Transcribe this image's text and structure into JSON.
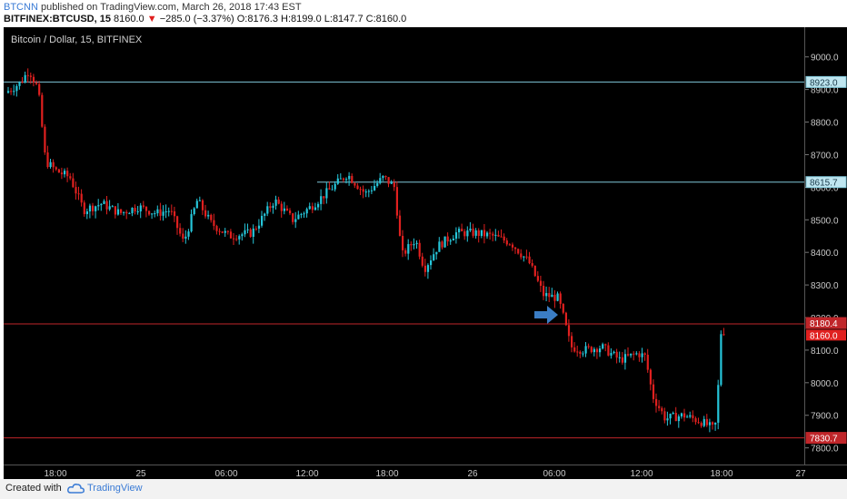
{
  "header": {
    "author": "BTCNN",
    "published_text": "published on TradingView.com, March 26, 2018 17:43 EST",
    "symbol": "BITFINEX:BTCUSD, 15",
    "last_price": "8160.0",
    "change_arrow": "▼",
    "change": "−285.0 (−3.37%)",
    "open": "O:8176.3",
    "high": "H:8199.0",
    "low": "L:8147.7",
    "close": "C:8160.0"
  },
  "footer": {
    "created_label": "Created with",
    "brand": "TradingView"
  },
  "colors": {
    "up": "#26c6da",
    "down": "#e0201f",
    "cyan_line": "#7fc6d8",
    "red_line": "#c0262a",
    "arrow": "#3b7dc4",
    "background": "#000000"
  },
  "chart_data": {
    "type": "candlestick",
    "title": "Bitcoin / Dollar, 15, BITFINEX",
    "ylim": [
      7760,
      9080
    ],
    "y_ticks": [
      "9000.0",
      "8900.0",
      "8800.0",
      "8700.0",
      "8600.0",
      "8500.0",
      "8400.0",
      "8300.0",
      "8200.0",
      "8100.0",
      "8000.0",
      "7900.0",
      "7800.0"
    ],
    "x_ticks": [
      "18:00",
      "25",
      "06:00",
      "12:00",
      "18:00",
      "26",
      "06:00",
      "12:00",
      "18:00",
      "27"
    ],
    "horizontal_lines": [
      {
        "name": "resistance-top",
        "value": 8923.0,
        "label": "8923.0",
        "color": "cyan"
      },
      {
        "name": "resistance-mid",
        "value": 8615.7,
        "label": "8615.7",
        "color": "cyan",
        "partial": true
      },
      {
        "name": "support-break",
        "value": 8180.4,
        "label": "8180.4",
        "color": "red"
      },
      {
        "name": "support-low",
        "value": 7830.7,
        "label": "7830.7",
        "color": "red"
      }
    ],
    "last_price_label": "8160.0",
    "annotation": "blue arrow pointing at the 8180.4 breakdown (≈06:00, Mar 26)",
    "key_points": [
      {
        "t": "Mar 24 ~15:00",
        "close": 8890
      },
      {
        "t": "Mar 24 ~17:00",
        "close": 8960
      },
      {
        "t": "Mar 24 ~20:00",
        "close": 8680
      },
      {
        "t": "Mar 25 00:00",
        "close": 8540
      },
      {
        "t": "Mar 25 05:00",
        "close": 8430
      },
      {
        "t": "Mar 25 13:00",
        "close": 8640
      },
      {
        "t": "Mar 25 17:00",
        "close": 8630
      },
      {
        "t": "Mar 25 19:00",
        "close": 8390
      },
      {
        "t": "Mar 25 23:00",
        "close": 8460
      },
      {
        "t": "Mar 26 05:00",
        "close": 8270
      },
      {
        "t": "Mar 26 06:00",
        "close": 8190
      },
      {
        "t": "Mar 26 09:00",
        "close": 8100
      },
      {
        "t": "Mar 26 12:00",
        "close": 8080
      },
      {
        "t": "Mar 26 13:00",
        "close": 7900
      },
      {
        "t": "Mar 26 17:00",
        "close": 7860
      },
      {
        "t": "Mar 26 17:30",
        "close": 8160
      }
    ]
  }
}
